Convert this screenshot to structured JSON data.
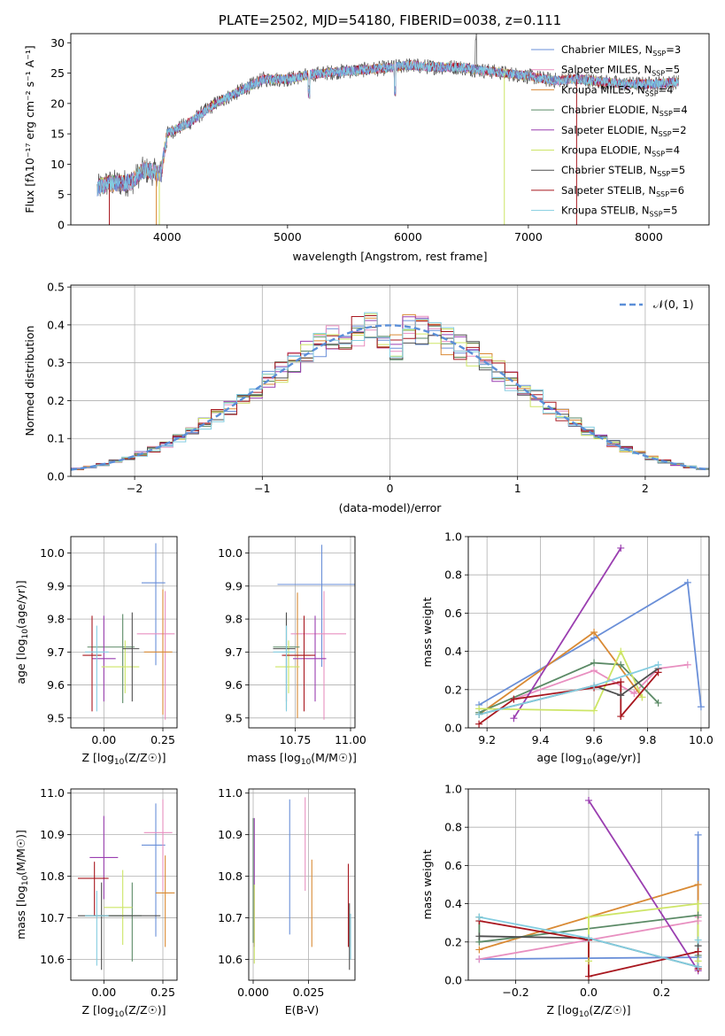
{
  "palette": [
    "#6a8fd8",
    "#e88fc0",
    "#d98a34",
    "#5b8a66",
    "#9a3eb0",
    "#cde566",
    "#4f4f4f",
    "#a8171f",
    "#83cde0"
  ],
  "chart_data": [
    {
      "id": "spectrum",
      "type": "line",
      "title": "PLATE=2502, MJD=54180, FIBERID=0038, z=0.111",
      "xlabel": "wavelength [Angstrom, rest frame]",
      "ylabel": "Flux [fλ10⁻¹⁷ erg cm⁻² s⁻¹ A⁻¹]",
      "xlim": [
        3200,
        8500
      ],
      "ylim": [
        0,
        31.5
      ],
      "xticks": [
        4000,
        5000,
        6000,
        7000,
        8000
      ],
      "yticks": [
        0,
        5,
        10,
        15,
        20,
        25,
        30
      ],
      "legend_position": "upper-right",
      "continuum": {
        "x": [
          3420,
          3500,
          3700,
          3800,
          3950,
          4000,
          4200,
          4400,
          4600,
          4800,
          5000,
          5200,
          5400,
          5600,
          5800,
          6000,
          6200,
          6400,
          6600,
          6800,
          7000,
          7200,
          7400,
          7600,
          7800,
          8000,
          8250
        ],
        "y": [
          6,
          6.8,
          7,
          9,
          8.5,
          15,
          17,
          20,
          22,
          24,
          24,
          24.8,
          25.2,
          25.5,
          25.8,
          26.3,
          26,
          26,
          25.5,
          25,
          24.5,
          23.8,
          24,
          23.6,
          23.2,
          23.2,
          23.5
        ]
      },
      "series": [
        {
          "name": "Chabrier MILES, N_SSP=3",
          "label_main": "Chabrier MILES, N",
          "label_sub": "SSP",
          "label_tail": "=3"
        },
        {
          "name": "Salpeter MILES, N_SSP=5",
          "label_main": "Salpeter MILES, N",
          "label_sub": "SSP",
          "label_tail": "=5"
        },
        {
          "name": "Kroupa MILES, N_SSP=4",
          "label_main": "Kroupa MILES, N",
          "label_sub": "SSP",
          "label_tail": "=4"
        },
        {
          "name": "Chabrier ELODIE, N_SSP=4",
          "label_main": "Chabrier ELODIE, N",
          "label_sub": "SSP",
          "label_tail": "=4"
        },
        {
          "name": "Salpeter ELODIE, N_SSP=2",
          "label_main": "Salpeter ELODIE, N",
          "label_sub": "SSP",
          "label_tail": "=2"
        },
        {
          "name": "Kroupa ELODIE, N_SSP=4",
          "label_main": "Kroupa ELODIE, N",
          "label_sub": "SSP",
          "label_tail": "=4"
        },
        {
          "name": "Chabrier STELIB, N_SSP=5",
          "label_main": "Chabrier STELIB, N",
          "label_sub": "SSP",
          "label_tail": "=5"
        },
        {
          "name": "Salpeter STELIB, N_SSP=6",
          "label_main": "Salpeter STELIB, N",
          "label_sub": "SSP",
          "label_tail": "=6"
        },
        {
          "name": "Kroupa STELIB, N_SSP=5",
          "label_main": "Kroupa STELIB, N",
          "label_sub": "SSP",
          "label_tail": "=5"
        }
      ]
    },
    {
      "id": "residuals",
      "type": "bar",
      "xlabel": "(data-model)/error",
      "ylabel": "Normed distribution",
      "xlim": [
        -2.5,
        2.5
      ],
      "ylim": [
        0,
        0.505
      ],
      "xticks": [
        -2,
        -1,
        0,
        1,
        2
      ],
      "yticks": [
        0.0,
        0.1,
        0.2,
        0.3,
        0.4,
        0.5
      ],
      "grid": true,
      "legend_position": "upper-right",
      "reference": {
        "name": "N(0,1)",
        "label": "𝒩(0, 1)",
        "mean": 0,
        "sigma": 1
      },
      "bin_width": 0.1
    },
    {
      "id": "age-vs-Z",
      "type": "scatter",
      "xlabel_main": "Z [log",
      "xlabel_sub": "10",
      "xlabel_tail": "(Z/Z☉)]",
      "ylabel_main": "age  [log",
      "ylabel_sub": "10",
      "ylabel_tail": "(age/yr)]",
      "xlim": [
        -0.14,
        0.31
      ],
      "ylim": [
        9.47,
        10.05
      ],
      "xticks": [
        0.0,
        0.25
      ],
      "yticks": [
        9.5,
        9.6,
        9.7,
        9.8,
        9.9,
        10.0
      ],
      "grid": true,
      "points": [
        {
          "x": 0.22,
          "xerr": [
            0.06,
            0.04
          ],
          "y": 9.91,
          "yerr": [
            0.25,
            0.12
          ]
        },
        {
          "x": 0.26,
          "xerr": [
            0.12,
            0.04
          ],
          "y": 9.755,
          "yerr": [
            0.26,
            0.13
          ]
        },
        {
          "x": 0.25,
          "xerr": [
            0.08,
            0.04
          ],
          "y": 9.7,
          "yerr": [
            0.19,
            0.19
          ]
        },
        {
          "x": 0.08,
          "xerr": [
            0.15,
            0.05
          ],
          "y": 9.715,
          "yerr": [
            0.17,
            0.1
          ]
        },
        {
          "x": 0.0,
          "xerr": [
            0.05,
            0.05
          ],
          "y": 9.68,
          "yerr": [
            0.13,
            0.13
          ]
        },
        {
          "x": 0.09,
          "xerr": [
            0.1,
            0.06
          ],
          "y": 9.655,
          "yerr": [
            0.08,
            0.08
          ]
        },
        {
          "x": 0.12,
          "xerr": [
            0.04,
            0.03
          ],
          "y": 9.71,
          "yerr": [
            0.16,
            0.11
          ]
        },
        {
          "x": -0.05,
          "xerr": [
            0.04,
            0.04
          ],
          "y": 9.69,
          "yerr": [
            0.17,
            0.12
          ]
        },
        {
          "x": -0.03,
          "xerr": [
            0.05,
            0.05
          ],
          "y": 9.7,
          "yerr": [
            0.18,
            0.08
          ]
        }
      ]
    },
    {
      "id": "age-vs-mass",
      "type": "scatter",
      "xlabel_main": "mass [log",
      "xlabel_sub": "10",
      "xlabel_tail": "(M/M☉)]",
      "xlim": [
        10.54,
        11.02
      ],
      "ylim": [
        9.47,
        10.05
      ],
      "xticks": [
        10.75,
        11.0
      ],
      "yticks": [
        9.5,
        9.6,
        9.7,
        9.8,
        9.9,
        10.0
      ],
      "grid": true,
      "points": [
        {
          "x": 10.87,
          "xerr": [
            0.2,
            0.15
          ],
          "y": 9.905,
          "yerr": [
            0.25,
            0.12
          ]
        },
        {
          "x": 10.88,
          "xerr": [
            0.15,
            0.1
          ],
          "y": 9.755,
          "yerr": [
            0.26,
            0.13
          ]
        },
        {
          "x": 10.76,
          "xerr": [
            0.06,
            0.06
          ],
          "y": 9.69,
          "yerr": [
            0.19,
            0.19
          ]
        },
        {
          "x": 10.71,
          "xerr": [
            0.06,
            0.06
          ],
          "y": 9.715,
          "yerr": [
            0.19,
            0.1
          ]
        },
        {
          "x": 10.84,
          "xerr": [
            0.1,
            0.05
          ],
          "y": 9.68,
          "yerr": [
            0.13,
            0.13
          ]
        },
        {
          "x": 10.72,
          "xerr": [
            0.06,
            0.05
          ],
          "y": 9.655,
          "yerr": [
            0.08,
            0.08
          ]
        },
        {
          "x": 10.71,
          "xerr": [
            0.06,
            0.04
          ],
          "y": 9.71,
          "yerr": [
            0.16,
            0.11
          ]
        },
        {
          "x": 10.79,
          "xerr": [
            0.1,
            0.05
          ],
          "y": 9.69,
          "yerr": [
            0.17,
            0.12
          ]
        },
        {
          "x": 10.71,
          "xerr": [
            0.06,
            0.04
          ],
          "y": 9.7,
          "yerr": [
            0.18,
            0.08
          ]
        }
      ]
    },
    {
      "id": "weight-vs-age",
      "type": "line",
      "xlabel_main": "age  [log",
      "xlabel_sub": "10",
      "xlabel_tail": "(age/yr)]",
      "ylabel": "mass weight",
      "xlim": [
        9.13,
        10.03
      ],
      "ylim": [
        0,
        1.0
      ],
      "xticks": [
        9.2,
        9.4,
        9.6,
        9.8,
        10.0
      ],
      "yticks": [
        0.0,
        0.2,
        0.4,
        0.6,
        0.8,
        1.0
      ],
      "grid": true,
      "series": [
        {
          "x": [
            9.17,
            9.6,
            9.95,
            10.0
          ],
          "y": [
            0.12,
            0.47,
            0.76,
            0.11
          ]
        },
        {
          "x": [
            9.3,
            9.6,
            9.75,
            9.84,
            9.95
          ],
          "y": [
            0.15,
            0.3,
            0.18,
            0.31,
            0.33
          ]
        },
        {
          "x": [
            9.17,
            9.6,
            9.78
          ],
          "y": [
            0.07,
            0.5,
            0.16
          ]
        },
        {
          "x": [
            9.17,
            9.6,
            9.7,
            9.84
          ],
          "y": [
            0.08,
            0.34,
            0.33,
            0.13
          ]
        },
        {
          "x": [
            9.3,
            9.7
          ],
          "y": [
            0.05,
            0.94
          ]
        },
        {
          "x": [
            9.17,
            9.6,
            9.7,
            9.78
          ],
          "y": [
            0.1,
            0.09,
            0.4,
            0.16
          ]
        },
        {
          "x": [
            9.17,
            9.6,
            9.7,
            9.84
          ],
          "y": [
            0.07,
            0.22,
            0.17,
            0.31
          ]
        },
        {
          "x": [
            9.17,
            9.3,
            9.6,
            9.7,
            9.7,
            9.84
          ],
          "y": [
            0.02,
            0.15,
            0.21,
            0.24,
            0.06,
            0.29
          ]
        },
        {
          "x": [
            9.17,
            9.6,
            9.84
          ],
          "y": [
            0.07,
            0.22,
            0.33
          ]
        }
      ]
    },
    {
      "id": "mass-vs-Z",
      "type": "scatter",
      "xlabel_main": "Z [log",
      "xlabel_sub": "10",
      "xlabel_tail": "(Z/Z☉)]",
      "ylabel_main": "mass [log",
      "ylabel_sub": "10",
      "ylabel_tail": "(M/M☉)]",
      "xlim": [
        -0.14,
        0.31
      ],
      "ylim": [
        10.55,
        11.01
      ],
      "xticks": [
        0.0,
        0.25
      ],
      "yticks": [
        10.6,
        10.7,
        10.8,
        10.9,
        11.0
      ],
      "grid": true,
      "points": [
        {
          "x": 0.22,
          "xerr": [
            0.06,
            0.04
          ],
          "y": 10.875,
          "yerr": [
            0.22,
            0.1
          ]
        },
        {
          "x": 0.25,
          "xerr": [
            0.08,
            0.04
          ],
          "y": 10.905,
          "yerr": [
            0.14,
            0.08
          ]
        },
        {
          "x": 0.26,
          "xerr": [
            0.04,
            0.04
          ],
          "y": 10.76,
          "yerr": [
            0.13,
            0.09
          ]
        },
        {
          "x": 0.12,
          "xerr": [
            0.2,
            0.04
          ],
          "y": 10.705,
          "yerr": [
            0.11,
            0.08
          ]
        },
        {
          "x": 0.0,
          "xerr": [
            0.06,
            0.06
          ],
          "y": 10.845,
          "yerr": [
            0.1,
            0.1
          ]
        },
        {
          "x": 0.08,
          "xerr": [
            0.08,
            0.04
          ],
          "y": 10.725,
          "yerr": [
            0.09,
            0.09
          ]
        },
        {
          "x": -0.01,
          "xerr": [
            0.1,
            0.25
          ],
          "y": 10.705,
          "yerr": [
            0.13,
            0.08
          ]
        },
        {
          "x": -0.04,
          "xerr": [
            0.07,
            0.06
          ],
          "y": 10.795,
          "yerr": [
            0.09,
            0.04
          ]
        },
        {
          "x": -0.03,
          "xerr": [
            0.05,
            0.05
          ],
          "y": 10.705,
          "yerr": [
            0.12,
            0.06
          ]
        }
      ]
    },
    {
      "id": "mass-vs-EBV",
      "type": "scatter",
      "xlabel": "E(B-V)",
      "xlim": [
        -0.002,
        0.046
      ],
      "ylim": [
        10.55,
        11.01
      ],
      "xticks": [
        0.0,
        0.025
      ],
      "xticklabels": [
        "0.000",
        "0.025"
      ],
      "yticks": [
        10.6,
        10.7,
        10.8,
        10.9,
        11.0
      ],
      "grid": true,
      "points": [
        {
          "x": 0.0165,
          "y": 10.82,
          "yerr": [
            0.16,
            0.165
          ]
        },
        {
          "x": 0.0235,
          "y": 10.875,
          "yerr": [
            0.11,
            0.115
          ]
        },
        {
          "x": 0.0265,
          "y": 10.74,
          "yerr": [
            0.11,
            0.1
          ]
        },
        {
          "x": 0.0,
          "y": 10.79,
          "yerr": [
            0.15,
            0.15
          ]
        },
        {
          "x": 0.0005,
          "y": 10.87,
          "yerr": [
            0.24,
            0.07
          ]
        },
        {
          "x": 0.0005,
          "y": 10.69,
          "yerr": [
            0.1,
            0.09
          ]
        },
        {
          "x": 0.0435,
          "y": 10.645,
          "yerr": [
            0.07,
            0.09
          ]
        },
        {
          "x": 0.043,
          "y": 10.73,
          "yerr": [
            0.1,
            0.1
          ]
        },
        {
          "x": 0.044,
          "y": 10.64,
          "yerr": [
            0.04,
            0.07
          ]
        }
      ]
    },
    {
      "id": "weight-vs-Z",
      "type": "line",
      "xlabel_main": "Z [log",
      "xlabel_sub": "10",
      "xlabel_tail": "(Z/Z☉)]",
      "ylabel": "mass weight",
      "xlim": [
        -0.33,
        0.33
      ],
      "ylim": [
        0,
        1.0
      ],
      "xticks": [
        -0.2,
        0.0,
        0.2
      ],
      "xticklabels": [
        "−0.2",
        "0.0",
        "0.2"
      ],
      "yticks": [
        0.0,
        0.2,
        0.4,
        0.6,
        0.8,
        1.0
      ],
      "grid": true,
      "series": [
        {
          "x": [
            -0.3,
            0.3,
            0.3,
            0.3
          ],
          "y": [
            0.11,
            0.12,
            0.76,
            0.06
          ]
        },
        {
          "x": [
            -0.3,
            0.0,
            0.3,
            0.3,
            0.3
          ],
          "y": [
            0.11,
            0.21,
            0.31,
            0.33,
            0.05
          ]
        },
        {
          "x": [
            -0.3,
            0.3,
            0.3
          ],
          "y": [
            0.16,
            0.5,
            0.06
          ]
        },
        {
          "x": [
            -0.3,
            -0.3,
            0.3,
            0.3
          ],
          "y": [
            0.33,
            0.2,
            0.34,
            0.13
          ]
        },
        {
          "x": [
            0.0,
            0.3
          ],
          "y": [
            0.94,
            0.05
          ]
        },
        {
          "x": [
            0.0,
            0.0,
            0.3,
            0.3
          ],
          "y": [
            0.1,
            0.33,
            0.4,
            0.1
          ]
        },
        {
          "x": [
            -0.3,
            0.0,
            0.3,
            0.3
          ],
          "y": [
            0.23,
            0.22,
            0.07,
            0.18
          ]
        },
        {
          "x": [
            -0.3,
            0.0,
            0.0,
            0.3,
            0.3
          ],
          "y": [
            0.31,
            0.21,
            0.02,
            0.15,
            0.06
          ]
        },
        {
          "x": [
            -0.3,
            0.0,
            0.3,
            0.3
          ],
          "y": [
            0.33,
            0.22,
            0.07,
            0.21
          ]
        }
      ]
    }
  ]
}
